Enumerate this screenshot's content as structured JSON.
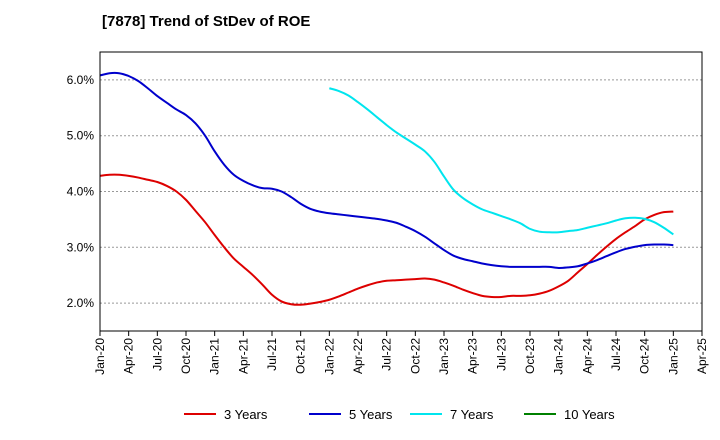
{
  "chart_data": {
    "type": "line",
    "title": "[7878]  Trend of StDev of ROE",
    "xlabel": "",
    "ylabel": "",
    "x_ticks": [
      "Jan-20",
      "Apr-20",
      "Jul-20",
      "Oct-20",
      "Jan-21",
      "Apr-21",
      "Jul-21",
      "Oct-21",
      "Jan-22",
      "Apr-22",
      "Jul-22",
      "Oct-22",
      "Jan-23",
      "Apr-23",
      "Jul-23",
      "Oct-23",
      "Jan-24",
      "Apr-24",
      "Jul-24",
      "Oct-24",
      "Jan-25",
      "Apr-25"
    ],
    "y_ticks": [
      "2.0%",
      "3.0%",
      "4.0%",
      "5.0%",
      "6.0%"
    ],
    "ylim": [
      1.5,
      6.5
    ],
    "grid": "horizontal dashed",
    "legend_position": "bottom",
    "series": [
      {
        "name": "3 Years",
        "color": "#dd0000",
        "x": [
          "2020-01",
          "2020-02",
          "2020-03",
          "2020-04",
          "2020-05",
          "2020-06",
          "2020-07",
          "2020-08",
          "2020-09",
          "2020-10",
          "2020-11",
          "2020-12",
          "2021-01",
          "2021-02",
          "2021-03",
          "2021-04",
          "2021-05",
          "2021-06",
          "2021-07",
          "2021-08",
          "2021-09",
          "2021-10",
          "2021-11",
          "2021-12",
          "2022-01",
          "2022-02",
          "2022-03",
          "2022-04",
          "2022-05",
          "2022-06",
          "2022-07",
          "2022-08",
          "2022-09",
          "2022-10",
          "2022-11",
          "2022-12",
          "2023-01",
          "2023-02",
          "2023-03",
          "2023-04",
          "2023-05",
          "2023-06",
          "2023-07",
          "2023-08",
          "2023-09",
          "2023-10",
          "2023-11",
          "2023-12",
          "2024-01",
          "2024-02",
          "2024-03",
          "2024-04",
          "2024-05",
          "2024-06",
          "2024-07",
          "2024-08",
          "2024-09",
          "2024-10",
          "2024-11",
          "2024-12",
          "2025-01"
        ],
        "values": [
          4.28,
          4.3,
          4.3,
          4.28,
          4.25,
          4.21,
          4.17,
          4.1,
          4.0,
          3.85,
          3.65,
          3.45,
          3.22,
          3.0,
          2.8,
          2.65,
          2.5,
          2.33,
          2.15,
          2.03,
          1.98,
          1.97,
          1.99,
          2.02,
          2.06,
          2.12,
          2.19,
          2.26,
          2.32,
          2.37,
          2.4,
          2.41,
          2.42,
          2.43,
          2.44,
          2.42,
          2.37,
          2.31,
          2.24,
          2.18,
          2.13,
          2.11,
          2.11,
          2.13,
          2.13,
          2.14,
          2.17,
          2.22,
          2.3,
          2.4,
          2.55,
          2.7,
          2.86,
          3.01,
          3.15,
          3.27,
          3.38,
          3.5,
          3.58,
          3.63,
          3.64
        ]
      },
      {
        "name": "5 Years",
        "color": "#0000cc",
        "x": [
          "2020-01",
          "2020-02",
          "2020-03",
          "2020-04",
          "2020-05",
          "2020-06",
          "2020-07",
          "2020-08",
          "2020-09",
          "2020-10",
          "2020-11",
          "2020-12",
          "2021-01",
          "2021-02",
          "2021-03",
          "2021-04",
          "2021-05",
          "2021-06",
          "2021-07",
          "2021-08",
          "2021-09",
          "2021-10",
          "2021-11",
          "2021-12",
          "2022-01",
          "2022-02",
          "2022-03",
          "2022-04",
          "2022-05",
          "2022-06",
          "2022-07",
          "2022-08",
          "2022-09",
          "2022-10",
          "2022-11",
          "2022-12",
          "2023-01",
          "2023-02",
          "2023-03",
          "2023-04",
          "2023-05",
          "2023-06",
          "2023-07",
          "2023-08",
          "2023-09",
          "2023-10",
          "2023-11",
          "2023-12",
          "2024-01",
          "2024-02",
          "2024-03",
          "2024-04",
          "2024-05",
          "2024-06",
          "2024-07",
          "2024-08",
          "2024-09",
          "2024-10",
          "2024-11",
          "2024-12",
          "2025-01"
        ],
        "values": [
          6.08,
          6.12,
          6.12,
          6.07,
          5.98,
          5.85,
          5.71,
          5.59,
          5.47,
          5.37,
          5.22,
          5.0,
          4.72,
          4.48,
          4.3,
          4.19,
          4.11,
          4.06,
          4.05,
          4.0,
          3.9,
          3.78,
          3.69,
          3.64,
          3.61,
          3.59,
          3.57,
          3.55,
          3.53,
          3.51,
          3.48,
          3.44,
          3.37,
          3.29,
          3.19,
          3.07,
          2.95,
          2.85,
          2.79,
          2.75,
          2.71,
          2.68,
          2.66,
          2.65,
          2.65,
          2.65,
          2.65,
          2.65,
          2.63,
          2.64,
          2.66,
          2.71,
          2.77,
          2.84,
          2.91,
          2.97,
          3.01,
          3.04,
          3.05,
          3.05,
          3.04
        ]
      },
      {
        "name": "7 Years",
        "color": "#00e5ee",
        "x": [
          "2022-01",
          "2022-02",
          "2022-03",
          "2022-04",
          "2022-05",
          "2022-06",
          "2022-07",
          "2022-08",
          "2022-09",
          "2022-10",
          "2022-11",
          "2022-12",
          "2023-01",
          "2023-02",
          "2023-03",
          "2023-04",
          "2023-05",
          "2023-06",
          "2023-07",
          "2023-08",
          "2023-09",
          "2023-10",
          "2023-11",
          "2023-12",
          "2024-01",
          "2024-02",
          "2024-03",
          "2024-04",
          "2024-05",
          "2024-06",
          "2024-07",
          "2024-08",
          "2024-09",
          "2024-10",
          "2024-11",
          "2024-12",
          "2025-01"
        ],
        "values": [
          5.85,
          5.8,
          5.72,
          5.6,
          5.47,
          5.33,
          5.19,
          5.06,
          4.95,
          4.84,
          4.72,
          4.53,
          4.27,
          4.03,
          3.88,
          3.77,
          3.68,
          3.62,
          3.56,
          3.5,
          3.43,
          3.33,
          3.28,
          3.27,
          3.27,
          3.29,
          3.31,
          3.35,
          3.39,
          3.43,
          3.48,
          3.52,
          3.53,
          3.51,
          3.45,
          3.35,
          3.23
        ]
      },
      {
        "name": "10 Years",
        "color": "#008000",
        "x": [],
        "values": []
      }
    ]
  }
}
